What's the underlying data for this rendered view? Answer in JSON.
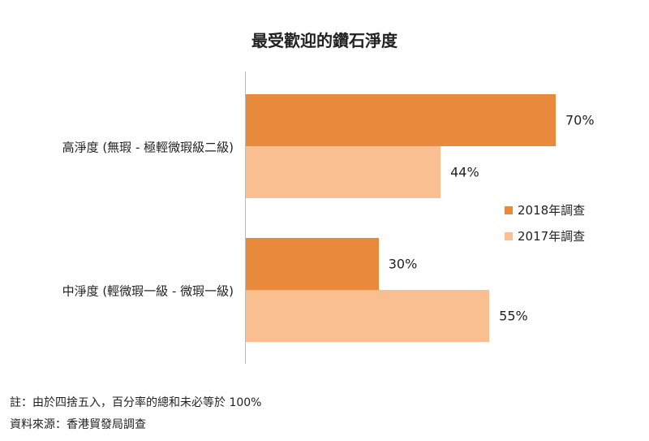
{
  "chart_data": {
    "type": "bar",
    "orientation": "horizontal",
    "title": "最受歡迎的鑽石淨度",
    "categories": [
      "高淨度 (無瑕 - 極輕微瑕級二級)",
      "中淨度 (輕微瑕一級 - 微瑕一級)"
    ],
    "series": [
      {
        "name": "2018年調查",
        "values": [
          70,
          30
        ],
        "labels": [
          "70%",
          "30%"
        ],
        "color": "#E8893B"
      },
      {
        "name": "2017年調查",
        "values": [
          44,
          55
        ],
        "labels": [
          "44%",
          "55%"
        ],
        "color": "#F9BF90"
      }
    ],
    "xlim": [
      0,
      100
    ],
    "unit": "%",
    "grid": false,
    "legend": "right"
  },
  "notes": {
    "note": "註：由於四捨五入，百分率的總和未必等於 100%",
    "source": "資料來源：香港貿發局調查"
  }
}
